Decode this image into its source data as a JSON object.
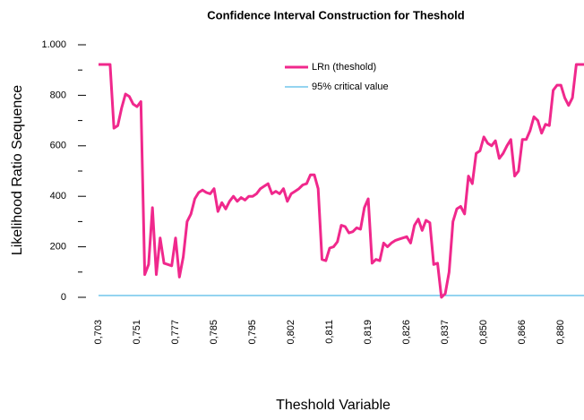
{
  "chart_data": {
    "type": "line",
    "title": "Confidence Interval Construction for Theshold",
    "x_label": "Theshold Variable",
    "y_label": "Likelihood Ratio Sequence",
    "categories": [
      "0,703",
      null,
      null,
      null,
      null,
      null,
      null,
      null,
      null,
      null,
      "0,751",
      null,
      null,
      null,
      null,
      null,
      null,
      null,
      null,
      null,
      "0,777",
      null,
      null,
      null,
      null,
      null,
      null,
      null,
      null,
      null,
      "0,785",
      null,
      null,
      null,
      null,
      null,
      null,
      null,
      null,
      null,
      "0,795",
      null,
      null,
      null,
      null,
      null,
      null,
      null,
      null,
      null,
      "0,802",
      null,
      null,
      null,
      null,
      null,
      null,
      null,
      null,
      null,
      "0,811",
      null,
      null,
      null,
      null,
      null,
      null,
      null,
      null,
      null,
      "0,819",
      null,
      null,
      null,
      null,
      null,
      null,
      null,
      null,
      null,
      "0,826",
      null,
      null,
      null,
      null,
      null,
      null,
      null,
      null,
      null,
      "0,837",
      null,
      null,
      null,
      null,
      null,
      null,
      null,
      null,
      null,
      "0,850",
      null,
      null,
      null,
      null,
      null,
      null,
      null,
      null,
      null,
      "0,866",
      null,
      null,
      null,
      null,
      null,
      null,
      null,
      null,
      null,
      "0,880",
      null,
      null,
      null,
      null,
      null,
      null
    ],
    "series": [
      {
        "name": "LRn (theshold)",
        "color": "#f0288c",
        "values": [
          922,
          922,
          922,
          922,
          670,
          680,
          750,
          805,
          795,
          765,
          755,
          775,
          90,
          130,
          355,
          90,
          235,
          135,
          130,
          125,
          235,
          80,
          160,
          300,
          330,
          390,
          415,
          425,
          415,
          410,
          430,
          340,
          375,
          350,
          380,
          400,
          380,
          395,
          385,
          400,
          400,
          410,
          430,
          440,
          450,
          410,
          420,
          410,
          430,
          380,
          410,
          420,
          430,
          445,
          450,
          485,
          485,
          430,
          150,
          145,
          195,
          200,
          220,
          285,
          280,
          255,
          260,
          275,
          270,
          355,
          390,
          135,
          150,
          145,
          215,
          200,
          215,
          225,
          230,
          235,
          240,
          215,
          285,
          310,
          265,
          305,
          295,
          130,
          135,
          0,
          15,
          100,
          300,
          350,
          360,
          330,
          480,
          450,
          570,
          580,
          635,
          610,
          600,
          620,
          550,
          570,
          600,
          625,
          480,
          500,
          625,
          625,
          660,
          715,
          700,
          650,
          685,
          680,
          820,
          840,
          840,
          790,
          760,
          790,
          922,
          922,
          922
        ]
      }
    ],
    "critical_value": {
      "name": "95% critical value",
      "color": "#29a8e0",
      "value": 7
    },
    "ylim": [
      0,
      1000
    ],
    "yticks": [
      0,
      200,
      400,
      600,
      800,
      {
        "value": 1000,
        "label": "1.000"
      }
    ],
    "minor_yticks": [
      100,
      300,
      500,
      700,
      900
    ],
    "legend": "top"
  }
}
